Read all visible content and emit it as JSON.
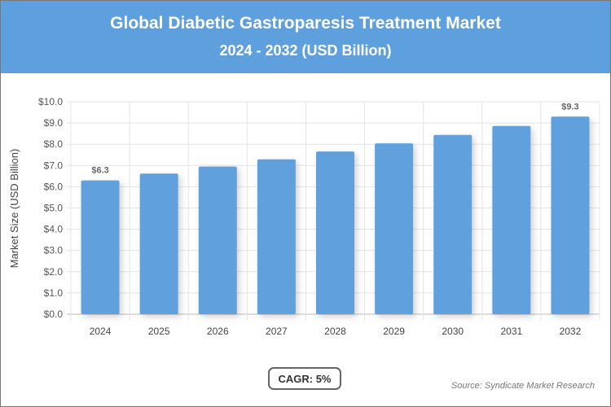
{
  "chart_data": {
    "type": "bar",
    "title": "Global Diabetic Gastroparesis Treatment Market",
    "subtitle": "2024 - 2032 (USD Billion)",
    "categories": [
      "2024",
      "2025",
      "2026",
      "2027",
      "2028",
      "2029",
      "2030",
      "2031",
      "2032"
    ],
    "values": [
      6.3,
      6.62,
      6.95,
      7.29,
      7.66,
      8.04,
      8.44,
      8.86,
      9.3
    ],
    "data_labels": {
      "0": "$6.3",
      "8": "$9.3"
    },
    "ylabel": "Market Size (USD Billion)",
    "xlabel": "",
    "ylim": [
      0,
      10
    ],
    "yticks": [
      "$0.0",
      "$1.0",
      "$2.0",
      "$3.0",
      "$4.0",
      "$5.0",
      "$6.0",
      "$7.0",
      "$8.0",
      "$9.0",
      "$10.0"
    ],
    "grid": true,
    "bar_color": "#5ea0dd"
  },
  "cagr_label": "CAGR: 5%",
  "source": "Source: Syndicate Market Research"
}
